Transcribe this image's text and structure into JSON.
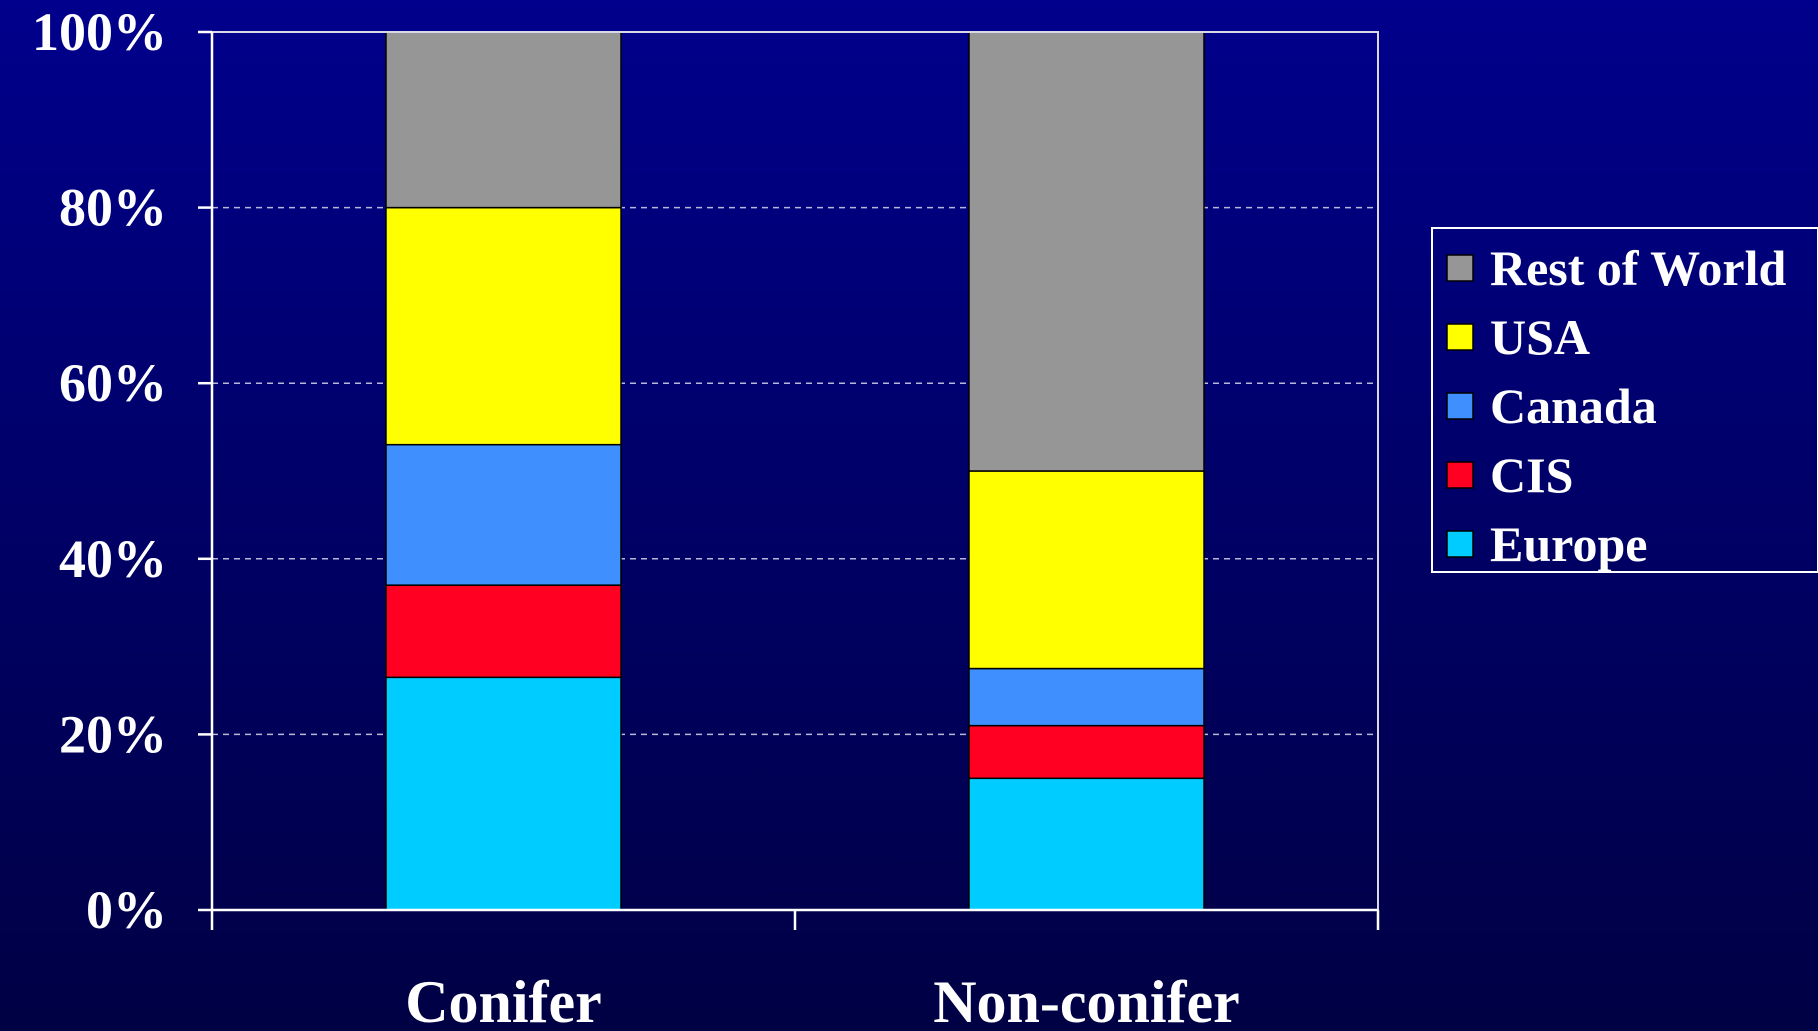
{
  "chart_data": {
    "type": "bar",
    "stacked": true,
    "categories": [
      "Conifer",
      "Non-conifer"
    ],
    "series": [
      {
        "name": "Europe",
        "color": "#00ccff",
        "values": [
          26.5,
          15
        ]
      },
      {
        "name": "CIS",
        "color": "#ff0022",
        "values": [
          10.5,
          6
        ]
      },
      {
        "name": "Canada",
        "color": "#3f8fff",
        "values": [
          16,
          6.5
        ]
      },
      {
        "name": "USA",
        "color": "#ffff00",
        "values": [
          27,
          22.5
        ]
      },
      {
        "name": "Rest of World",
        "color": "#969696",
        "values": [
          20,
          50
        ]
      }
    ],
    "ylim": [
      0,
      100
    ],
    "yticks": [
      0,
      20,
      40,
      60,
      80,
      100
    ],
    "ytick_labels": [
      "0%",
      "20%",
      "40%",
      "60%",
      "80%",
      "100%"
    ],
    "grid": true,
    "legend_position": "right",
    "title": "",
    "xlabel": "",
    "ylabel": ""
  }
}
